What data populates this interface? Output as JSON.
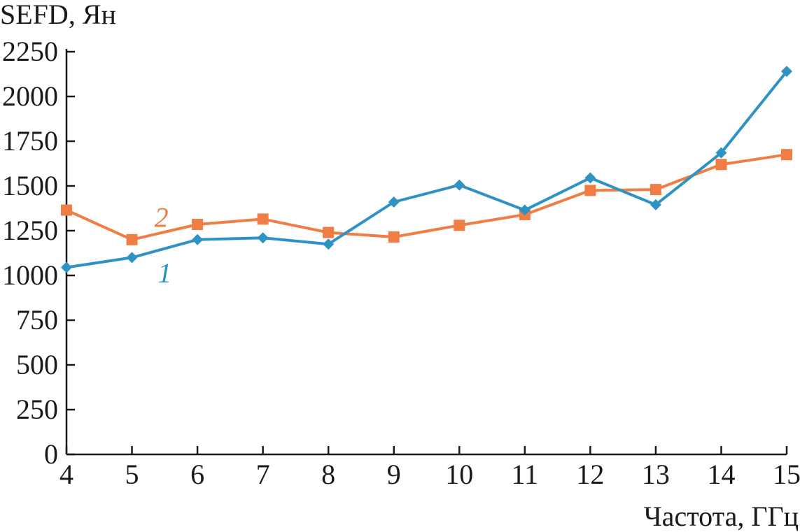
{
  "chart_data": {
    "type": "line",
    "title": "",
    "ylabel": "SEFD, Ян",
    "xlabel": "Частота, ГГц",
    "x": [
      4,
      5,
      6,
      7,
      8,
      9,
      10,
      11,
      12,
      13,
      14,
      15
    ],
    "xlim": [
      4,
      15
    ],
    "ylim": [
      0,
      2250
    ],
    "yticks": [
      0,
      250,
      500,
      750,
      1000,
      1250,
      1500,
      1750,
      2000,
      2250
    ],
    "xticks": [
      4,
      5,
      6,
      7,
      8,
      9,
      10,
      11,
      12,
      13,
      14,
      15
    ],
    "grid": false,
    "series": [
      {
        "name": "1",
        "marker": "diamond",
        "color": "#2e93c3",
        "values": [
          1045,
          1100,
          1200,
          1210,
          1175,
          1410,
          1505,
          1365,
          1545,
          1395,
          1685,
          2140
        ]
      },
      {
        "name": "2",
        "marker": "square",
        "color": "#f07d44",
        "values": [
          1365,
          1200,
          1285,
          1315,
          1240,
          1215,
          1280,
          1340,
          1475,
          1480,
          1620,
          1675
        ]
      }
    ]
  }
}
